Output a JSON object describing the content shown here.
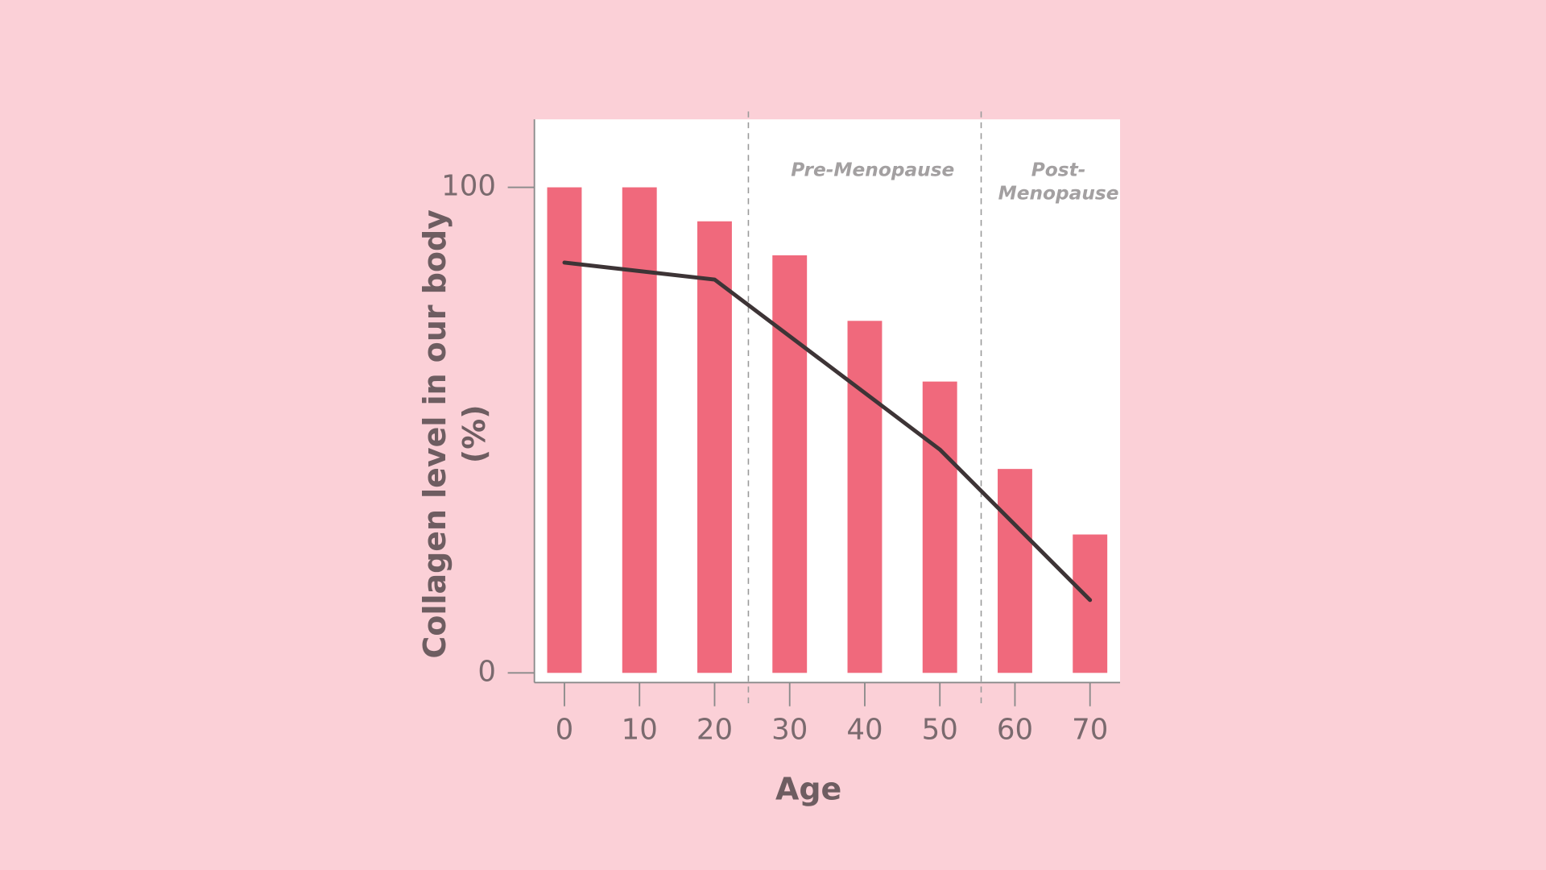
{
  "chart_data": {
    "type": "bar",
    "x_label": "Age",
    "y_label": [
      "Collagen level in our body",
      "(%)"
    ],
    "x": [
      0,
      10,
      20,
      30,
      40,
      50,
      60,
      70
    ],
    "values": [
      100,
      100,
      93,
      86,
      72.5,
      60,
      42,
      28.5
    ],
    "color": "#f0697c",
    "line": {
      "x": [
        0,
        20,
        50,
        70
      ],
      "values": [
        84.5,
        81,
        46,
        15
      ],
      "color": "#3d3436"
    },
    "regions": [
      {
        "start": 24.5,
        "label": [
          "Pre-Menopause"
        ]
      },
      {
        "start": 55.5,
        "label": [
          "Post-",
          "Menopause"
        ]
      }
    ],
    "xlim": [
      -4,
      74
    ],
    "xticks": [
      0,
      10,
      20,
      30,
      40,
      50,
      60,
      70
    ],
    "ylim": [
      -2,
      114
    ],
    "yticks": [
      0,
      100
    ]
  }
}
